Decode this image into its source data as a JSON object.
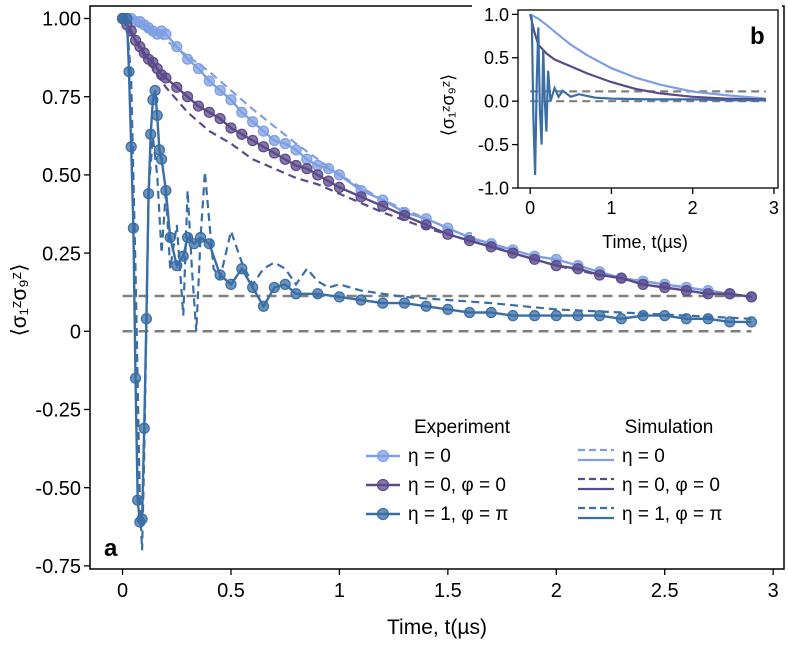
{
  "colors": {
    "eta0": "#7f9fe3",
    "eta0_phi0": "#5b4a8a",
    "eta1_phipi": "#3a6ea5",
    "reference": "#808080",
    "axes": "#000000"
  },
  "chart_data": [
    {
      "panel": "a",
      "type": "line",
      "xlabel": "Time, t(µs)",
      "ylabel": "⟨σ₁ᶻσ₉ᶻ⟩",
      "xlim": [
        -0.15,
        3.05
      ],
      "ylim": [
        -0.76,
        1.04
      ],
      "xticks": [
        0,
        0.5,
        1,
        1.5,
        2,
        2.5,
        3
      ],
      "xtick_labels": [
        "0",
        "0.5",
        "1",
        "1.5",
        "2",
        "2.5",
        "3"
      ],
      "yticks": [
        1.0,
        0.75,
        0.5,
        0.25,
        0,
        -0.25,
        -0.5,
        -0.75
      ],
      "ytick_labels": [
        "1.00",
        "0.75",
        "0.50",
        "0.25",
        "0",
        "-0.25",
        "-0.50",
        "-0.75"
      ],
      "grid": false,
      "legend": {
        "position": "lower-right",
        "experiment_header": "Experiment",
        "simulation_header": "Simulation",
        "entries": [
          "η = 0",
          "η = 0, φ = 0",
          "η = 1, φ = π"
        ]
      },
      "reference_lines": [
        0.113,
        0.0
      ],
      "series": [
        {
          "name": "η = 0",
          "kind": "experiment",
          "color_key": "eta0",
          "x": [
            0,
            0.02,
            0.04,
            0.06,
            0.08,
            0.1,
            0.12,
            0.14,
            0.16,
            0.18,
            0.2,
            0.25,
            0.3,
            0.35,
            0.4,
            0.45,
            0.5,
            0.55,
            0.6,
            0.65,
            0.7,
            0.75,
            0.8,
            0.85,
            0.9,
            0.95,
            1.0,
            1.1,
            1.2,
            1.3,
            1.4,
            1.5,
            1.6,
            1.7,
            1.8,
            1.9,
            2.0,
            2.1,
            2.2,
            2.3,
            2.4,
            2.5,
            2.6,
            2.7,
            2.8,
            2.9
          ],
          "y": [
            1.0,
            1.0,
            1.0,
            0.99,
            0.99,
            0.98,
            0.97,
            0.96,
            0.95,
            0.96,
            0.95,
            0.91,
            0.87,
            0.84,
            0.8,
            0.77,
            0.74,
            0.7,
            0.67,
            0.64,
            0.61,
            0.6,
            0.58,
            0.55,
            0.53,
            0.52,
            0.5,
            0.45,
            0.42,
            0.38,
            0.36,
            0.33,
            0.3,
            0.28,
            0.26,
            0.24,
            0.23,
            0.21,
            0.19,
            0.17,
            0.16,
            0.15,
            0.14,
            0.13,
            0.12,
            0.11
          ]
        },
        {
          "name": "η = 0, φ = 0",
          "kind": "experiment",
          "color_key": "eta0_phi0",
          "x": [
            0,
            0.02,
            0.04,
            0.06,
            0.08,
            0.1,
            0.12,
            0.14,
            0.16,
            0.18,
            0.2,
            0.25,
            0.3,
            0.35,
            0.4,
            0.45,
            0.5,
            0.55,
            0.6,
            0.65,
            0.7,
            0.75,
            0.8,
            0.85,
            0.9,
            0.95,
            1.0,
            1.1,
            1.2,
            1.3,
            1.4,
            1.5,
            1.6,
            1.7,
            1.8,
            1.9,
            2.0,
            2.1,
            2.2,
            2.3,
            2.4,
            2.5,
            2.6,
            2.7,
            2.8,
            2.9
          ],
          "y": [
            1.0,
            0.98,
            0.96,
            0.93,
            0.91,
            0.89,
            0.87,
            0.86,
            0.84,
            0.82,
            0.81,
            0.78,
            0.75,
            0.72,
            0.7,
            0.68,
            0.65,
            0.63,
            0.61,
            0.59,
            0.57,
            0.55,
            0.53,
            0.52,
            0.5,
            0.48,
            0.46,
            0.43,
            0.4,
            0.37,
            0.34,
            0.31,
            0.29,
            0.27,
            0.25,
            0.23,
            0.21,
            0.2,
            0.18,
            0.17,
            0.15,
            0.14,
            0.13,
            0.12,
            0.12,
            0.11
          ]
        },
        {
          "name": "η = 1, φ = π",
          "kind": "experiment",
          "color_key": "eta1_phipi",
          "x": [
            0,
            0.02,
            0.03,
            0.04,
            0.05,
            0.06,
            0.07,
            0.08,
            0.09,
            0.1,
            0.11,
            0.12,
            0.13,
            0.14,
            0.15,
            0.16,
            0.17,
            0.18,
            0.2,
            0.22,
            0.25,
            0.28,
            0.3,
            0.33,
            0.36,
            0.4,
            0.45,
            0.5,
            0.55,
            0.6,
            0.65,
            0.7,
            0.75,
            0.8,
            0.9,
            1.0,
            1.1,
            1.2,
            1.3,
            1.4,
            1.5,
            1.6,
            1.7,
            1.8,
            1.9,
            2.0,
            2.1,
            2.2,
            2.3,
            2.4,
            2.5,
            2.6,
            2.7,
            2.8,
            2.9
          ],
          "y": [
            1.0,
            1.0,
            0.83,
            0.59,
            0.33,
            -0.15,
            -0.54,
            -0.61,
            -0.6,
            -0.31,
            0.04,
            0.44,
            0.63,
            0.74,
            0.77,
            0.69,
            0.58,
            0.55,
            0.45,
            0.3,
            0.21,
            0.24,
            0.3,
            0.28,
            0.3,
            0.28,
            0.18,
            0.15,
            0.2,
            0.14,
            0.08,
            0.14,
            0.15,
            0.12,
            0.12,
            0.11,
            0.1,
            0.09,
            0.09,
            0.08,
            0.07,
            0.06,
            0.06,
            0.05,
            0.05,
            0.05,
            0.05,
            0.05,
            0.04,
            0.05,
            0.05,
            0.04,
            0.04,
            0.03,
            0.03
          ]
        },
        {
          "name": "η = 0",
          "kind": "simulation",
          "color_key": "eta0",
          "x": [
            0,
            0.2,
            0.4,
            0.6,
            0.8,
            1.0,
            1.2,
            1.4,
            1.6,
            1.8,
            2.0,
            2.2,
            2.4,
            2.6,
            2.8,
            2.9
          ],
          "y": [
            1.0,
            0.93,
            0.83,
            0.71,
            0.6,
            0.5,
            0.42,
            0.36,
            0.3,
            0.25,
            0.21,
            0.18,
            0.16,
            0.14,
            0.12,
            0.11
          ]
        },
        {
          "name": "η = 0, φ = 0",
          "kind": "simulation",
          "color_key": "eta0_phi0",
          "x": [
            0,
            0.1,
            0.2,
            0.3,
            0.4,
            0.5,
            0.6,
            0.7,
            0.8,
            0.9,
            1.0,
            1.2,
            1.4,
            1.6,
            1.8,
            2.0,
            2.2,
            2.4,
            2.6,
            2.8,
            2.9
          ],
          "y": [
            1.0,
            0.88,
            0.78,
            0.7,
            0.64,
            0.6,
            0.55,
            0.52,
            0.49,
            0.47,
            0.44,
            0.38,
            0.33,
            0.29,
            0.25,
            0.21,
            0.18,
            0.16,
            0.14,
            0.12,
            0.11
          ]
        },
        {
          "name": "η = 1, φ = π",
          "kind": "simulation",
          "color_key": "eta1_phipi",
          "x": [
            0,
            0.02,
            0.04,
            0.06,
            0.08,
            0.09,
            0.1,
            0.12,
            0.14,
            0.16,
            0.18,
            0.2,
            0.22,
            0.25,
            0.28,
            0.3,
            0.32,
            0.34,
            0.36,
            0.38,
            0.4,
            0.42,
            0.45,
            0.5,
            0.55,
            0.6,
            0.65,
            0.7,
            0.75,
            0.8,
            0.85,
            0.9,
            0.95,
            1.0,
            1.1,
            1.2,
            1.3,
            1.5,
            1.7,
            2.0,
            2.3,
            2.6,
            2.9
          ],
          "y": [
            1.0,
            0.99,
            0.8,
            0.2,
            -0.55,
            -0.7,
            -0.4,
            0.45,
            0.62,
            0.5,
            0.25,
            0.45,
            0.2,
            0.34,
            0.05,
            0.45,
            0.2,
            0.0,
            0.3,
            0.51,
            0.35,
            0.2,
            0.17,
            0.32,
            0.22,
            0.15,
            0.2,
            0.22,
            0.2,
            0.15,
            0.2,
            0.16,
            0.14,
            0.15,
            0.13,
            0.12,
            0.11,
            0.1,
            0.09,
            0.07,
            0.06,
            0.05,
            0.04
          ]
        }
      ]
    },
    {
      "panel": "b",
      "type": "line",
      "xlabel": "Time, t(µs)",
      "ylabel": "⟨σ₁ᶻσ₉ᶻ⟩",
      "xlim": [
        -0.15,
        3.05
      ],
      "ylim": [
        -1.0,
        1.05
      ],
      "xticks": [
        0,
        1,
        2,
        3
      ],
      "xtick_labels": [
        "0",
        "1",
        "2",
        "3"
      ],
      "yticks": [
        1.0,
        0.5,
        0.0,
        -0.5,
        -1.0
      ],
      "ytick_labels": [
        "1.0",
        "0.5",
        "0.0",
        "-0.5",
        "-1.0"
      ],
      "grid": false,
      "reference_lines": [
        0.113,
        0.0
      ],
      "series": [
        {
          "name": "η = 0",
          "color_key": "eta0",
          "x": [
            0,
            0.1,
            0.2,
            0.3,
            0.5,
            0.7,
            1.0,
            1.3,
            1.6,
            2.0,
            2.4,
            2.9
          ],
          "y": [
            1.0,
            0.95,
            0.88,
            0.8,
            0.65,
            0.53,
            0.38,
            0.27,
            0.19,
            0.11,
            0.07,
            0.03
          ]
        },
        {
          "name": "η = 0, φ = 0",
          "color_key": "eta0_phi0",
          "x": [
            0,
            0.05,
            0.1,
            0.2,
            0.3,
            0.5,
            0.7,
            1.0,
            1.3,
            1.6,
            2.0,
            2.4,
            2.9
          ],
          "y": [
            1.0,
            0.8,
            0.65,
            0.55,
            0.48,
            0.4,
            0.32,
            0.22,
            0.14,
            0.09,
            0.05,
            0.03,
            0.02
          ]
        },
        {
          "name": "η = 1, φ = π",
          "color_key": "eta1_phipi",
          "x": [
            0,
            0.02,
            0.04,
            0.06,
            0.08,
            0.1,
            0.12,
            0.14,
            0.16,
            0.18,
            0.2,
            0.22,
            0.25,
            0.3,
            0.35,
            0.4,
            0.5,
            0.6,
            0.8,
            1.0,
            1.5,
            2.0,
            2.5,
            2.9
          ],
          "y": [
            1.0,
            0.95,
            -0.2,
            -0.85,
            0.2,
            0.85,
            -0.1,
            -0.5,
            0.6,
            0.0,
            -0.35,
            0.35,
            0.0,
            0.15,
            0.05,
            0.12,
            0.05,
            0.08,
            0.04,
            0.03,
            0.02,
            0.02,
            0.01,
            0.01
          ]
        }
      ]
    }
  ]
}
